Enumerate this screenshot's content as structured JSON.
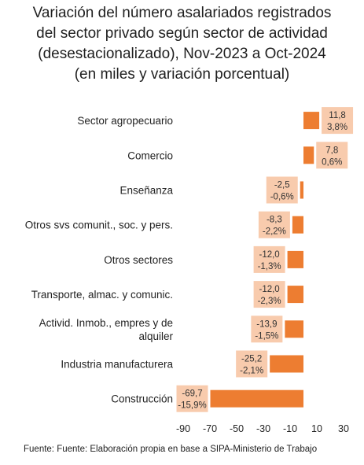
{
  "chart_data": {
    "type": "bar",
    "orientation": "horizontal",
    "title": "Variación del número asalariados registrados\ndel sector privado según sector de actividad\n(desestacionalizado), Nov-2023 a Oct-2024\n(en miles y variación porcentual)",
    "categories": [
      "Sector agropecuario",
      "Comercio",
      "Enseñanza",
      "Otros svs comunit., soc. y pers.",
      "Otros sectores",
      "Transporte, almac. y comunic.",
      "Activid. Inmob., empres y de alquiler",
      "Industria manufacturera",
      "Construcción"
    ],
    "category_lines": [
      [
        "Sector agropecuario"
      ],
      [
        "Comercio"
      ],
      [
        "Enseñanza"
      ],
      [
        "Otros svs comunit., soc. y pers."
      ],
      [
        "Otros sectores"
      ],
      [
        "Transporte, almac. y comunic."
      ],
      [
        "Activid. Inmob., empres y de",
        "alquiler"
      ],
      [
        "Industria manufacturera"
      ],
      [
        "Construcción"
      ]
    ],
    "values": [
      11.8,
      7.8,
      -2.5,
      -8.3,
      -12.0,
      -12.0,
      -13.9,
      -25.2,
      -69.7
    ],
    "value_labels": [
      "11,8",
      "7,8",
      "-2,5",
      "-8,3",
      "-12,0",
      "-12,0",
      "-13,9",
      "-25,2",
      "-69,7"
    ],
    "pct_labels": [
      "3,8%",
      "0,6%",
      "-0,6%",
      "-2,2%",
      "-1,3%",
      "-2,3%",
      "-1,5%",
      "-2,1%",
      "-15,9%"
    ],
    "xlim": [
      -90,
      30
    ],
    "x_ticks": [
      "-90",
      "-70",
      "-50",
      "-30",
      "-10",
      "10",
      "30"
    ],
    "x_tick_values": [
      -90,
      -70,
      -50,
      -30,
      -10,
      10,
      30
    ],
    "grid": false,
    "bar_color": "#ed7d31",
    "label_box_color": "#f8cbad"
  },
  "source_note": "Fuente: Fuente: Elaboración propia en base a SIPA-Ministerio de Trabajo"
}
